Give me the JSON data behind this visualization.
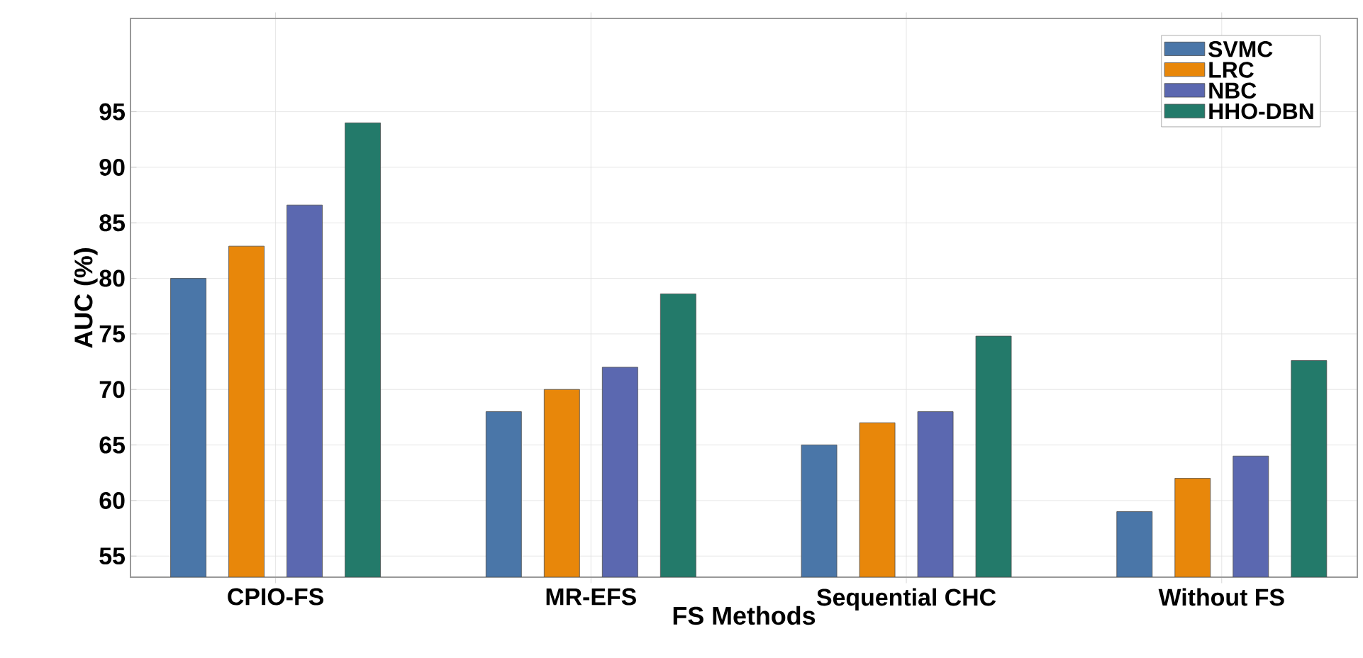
{
  "chart_data": {
    "type": "bar",
    "xlabel": "FS Methods",
    "ylabel": "AUC (%)",
    "categories": [
      "CPIO-FS",
      "MR-EFS",
      "Sequential CHC",
      "Without FS"
    ],
    "series": [
      {
        "name": "SVMC",
        "color": "#4a76a8",
        "values": [
          80,
          68,
          65,
          59
        ]
      },
      {
        "name": "LRC",
        "color": "#e8870a",
        "values": [
          82.9,
          70,
          67,
          62
        ]
      },
      {
        "name": "NBC",
        "color": "#5b68b0",
        "values": [
          86.6,
          72,
          68,
          64
        ]
      },
      {
        "name": "HHO-DBN",
        "color": "#237a6a",
        "values": [
          94,
          78.6,
          74.8,
          72.6
        ]
      }
    ],
    "ylim": [
      53.1,
      103.4
    ],
    "yticks": [
      55,
      60,
      65,
      70,
      75,
      80,
      85,
      90,
      95
    ],
    "grid": true,
    "legend": "top right"
  }
}
